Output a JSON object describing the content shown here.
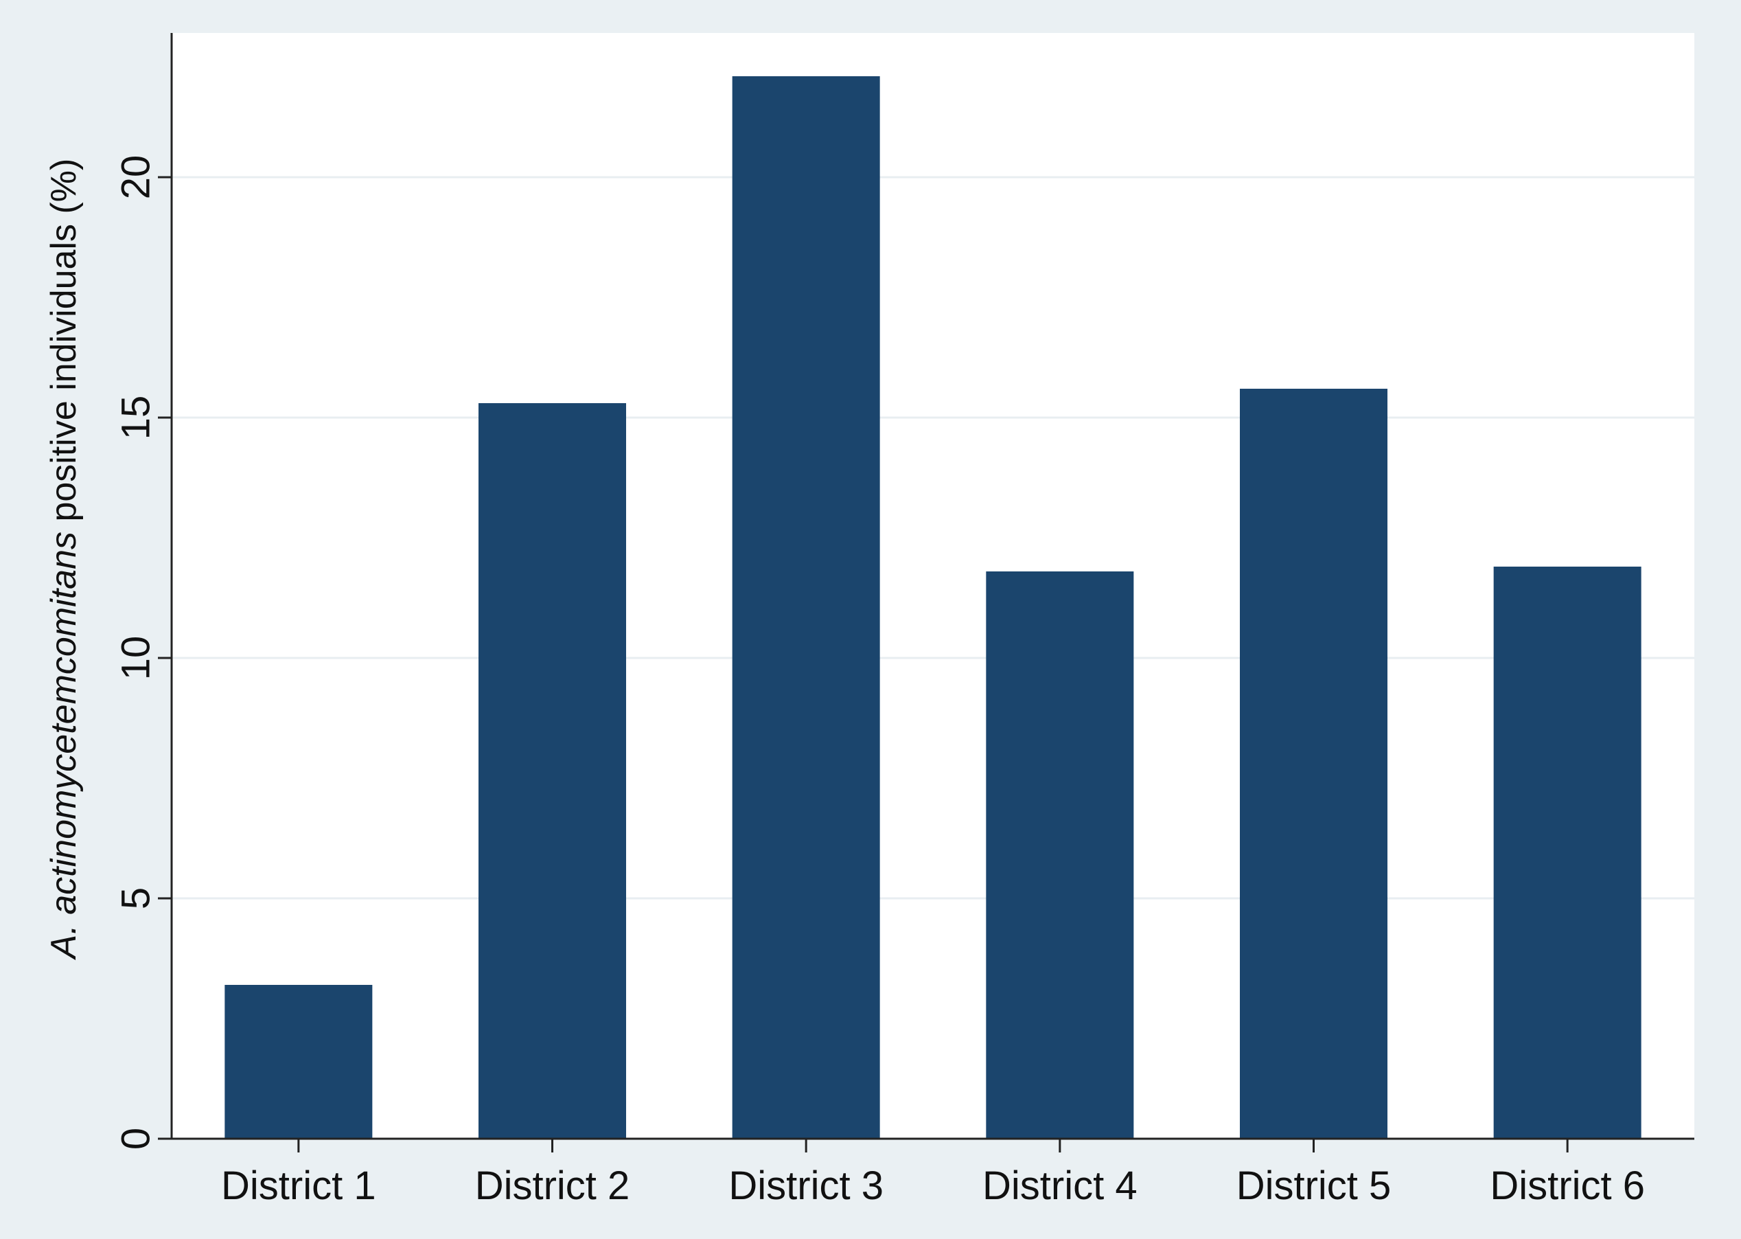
{
  "chart_data": {
    "type": "bar",
    "categories": [
      "District 1",
      "District 2",
      "District 3",
      "District 4",
      "District 5",
      "District 6"
    ],
    "values": [
      3.2,
      15.3,
      22.1,
      11.8,
      15.6,
      11.9
    ],
    "title": "",
    "xlabel": "",
    "ylabel_italic": "A. actinomycetemcomitans",
    "ylabel_rest": " positive individuals (%)",
    "ylim": [
      0,
      23
    ],
    "yticks": [
      0,
      5,
      10,
      15,
      20
    ],
    "grid": true,
    "legend": "none",
    "colors": {
      "bar": "#1b456d",
      "plot_background": "#ffffff",
      "outer_background": "#eaf0f3",
      "grid": "#e8eef1",
      "axis": "#222222"
    }
  }
}
